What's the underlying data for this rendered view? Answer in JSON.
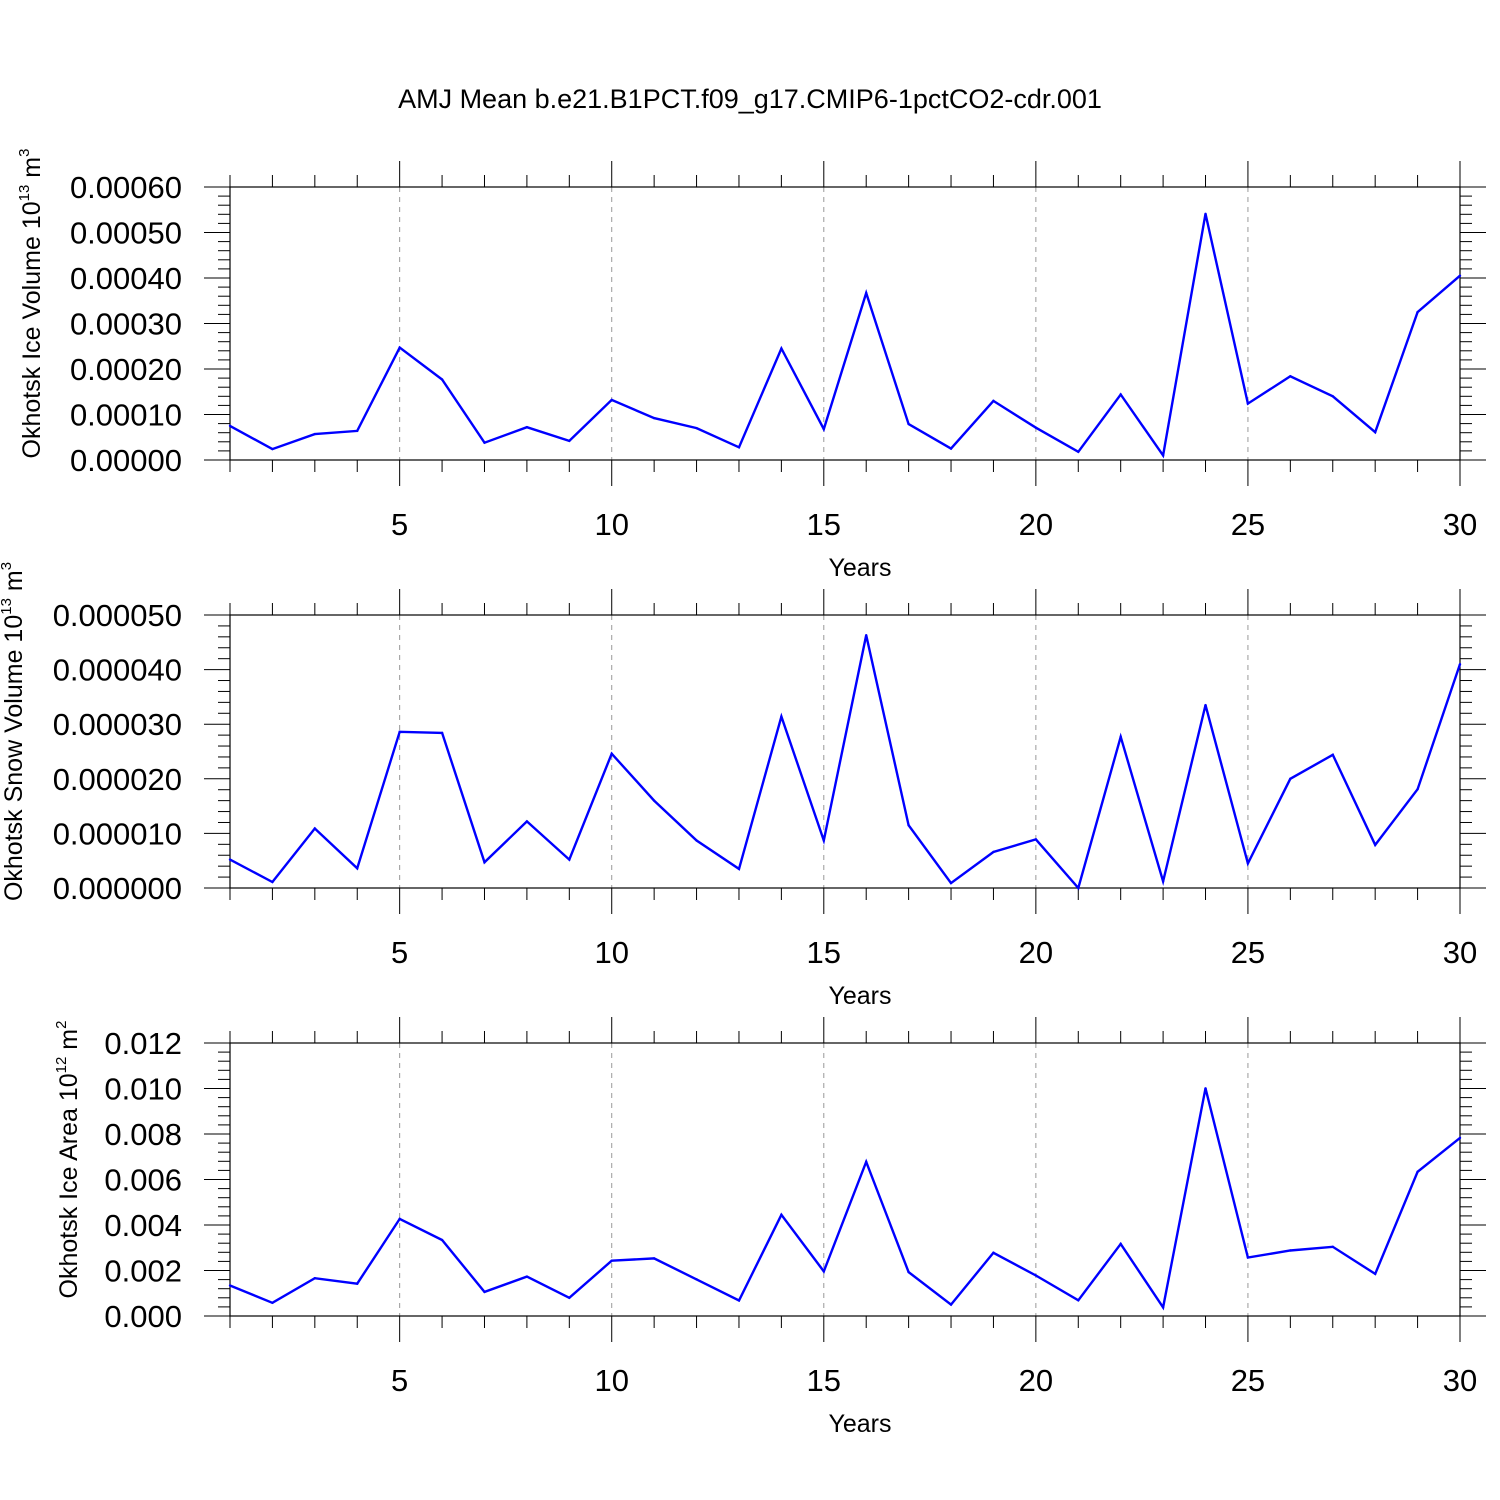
{
  "title": "AMJ Mean b.e21.B1PCT.f09_g17.CMIP6-1pctCO2-cdr.001",
  "colors": {
    "line": "#0000ff",
    "axes": "#000000",
    "grid": "#999999"
  },
  "chart_data": [
    {
      "type": "line",
      "xlabel": "Years",
      "ylabel": "Okhotsk Ice Volume 10^13 m^3",
      "ylabel_parts": {
        "base": "Okhotsk Ice Volume 10",
        "exp1": "13",
        "unit": " m",
        "exp2": "3"
      },
      "xlim": [
        1,
        30
      ],
      "ylim": [
        0,
        0.0006
      ],
      "xticks": [
        5,
        10,
        15,
        20,
        25,
        30
      ],
      "yticks": [
        0,
        0.0001,
        0.0002,
        0.0003,
        0.0004,
        0.0005,
        0.0006
      ],
      "ytick_labels": [
        "0.00000",
        "0.00010",
        "0.00020",
        "0.00030",
        "0.00040",
        "0.00050",
        "0.00060"
      ],
      "grid": "x-dashed",
      "x": [
        1,
        2,
        3,
        4,
        5,
        6,
        7,
        8,
        9,
        10,
        11,
        12,
        13,
        14,
        15,
        16,
        17,
        18,
        19,
        20,
        21,
        22,
        23,
        24,
        25,
        26,
        27,
        28,
        29,
        30
      ],
      "y": [
        7.5e-05,
        2.4e-05,
        5.7e-05,
        6.4e-05,
        0.000247,
        0.000177,
        3.8e-05,
        7.2e-05,
        4.2e-05,
        0.000132,
        9.2e-05,
        7e-05,
        2.8e-05,
        0.000245,
        6.8e-05,
        0.000367,
        7.9e-05,
        2.5e-05,
        0.00013,
        7.1e-05,
        1.8e-05,
        0.000144,
        1e-05,
        0.000541,
        0.000124,
        0.000184,
        0.00014,
        6.1e-05,
        0.000325,
        0.000405
      ]
    },
    {
      "type": "line",
      "xlabel": "Years",
      "ylabel": "Okhotsk Snow Volume 10^13 m^3",
      "ylabel_parts": {
        "base": "Okhotsk Snow Volume 10",
        "exp1": "13",
        "unit": " m",
        "exp2": "3"
      },
      "xlim": [
        1,
        30
      ],
      "ylim": [
        0,
        5e-05
      ],
      "xticks": [
        5,
        10,
        15,
        20,
        25,
        30
      ],
      "yticks": [
        0,
        1e-05,
        2e-05,
        3e-05,
        4e-05,
        5e-05
      ],
      "ytick_labels": [
        "0.000000",
        "0.000010",
        "0.000020",
        "0.000030",
        "0.000040",
        "0.000050"
      ],
      "grid": "x-dashed",
      "x": [
        1,
        2,
        3,
        4,
        5,
        6,
        7,
        8,
        9,
        10,
        11,
        12,
        13,
        14,
        15,
        16,
        17,
        18,
        19,
        20,
        21,
        22,
        23,
        24,
        25,
        26,
        27,
        28,
        29,
        30
      ],
      "y": [
        5.2e-06,
        1.1e-06,
        1.09e-05,
        3.6e-06,
        2.86e-05,
        2.84e-05,
        4.7e-06,
        1.22e-05,
        5.2e-06,
        2.46e-05,
        1.6e-05,
        8.7e-06,
        3.5e-06,
        3.14e-05,
        8.7e-06,
        4.63e-05,
        1.15e-05,
        9e-07,
        6.6e-06,
        8.9e-06,
        0.0,
        2.77e-05,
        1.2e-06,
        3.35e-05,
        4.5e-06,
        2e-05,
        2.44e-05,
        7.9e-06,
        1.81e-05,
        4.1e-05
      ]
    },
    {
      "type": "line",
      "xlabel": "Years",
      "ylabel": "Okhotsk Ice Area 10^12 m^2",
      "ylabel_parts": {
        "base": "Okhotsk Ice Area 10",
        "exp1": "12",
        "unit": " m",
        "exp2": "2"
      },
      "xlim": [
        1,
        30
      ],
      "ylim": [
        0,
        0.012
      ],
      "xticks": [
        5,
        10,
        15,
        20,
        25,
        30
      ],
      "yticks": [
        0,
        0.002,
        0.004,
        0.006,
        0.008,
        0.01,
        0.012
      ],
      "ytick_labels": [
        "0.000",
        "0.002",
        "0.004",
        "0.006",
        "0.008",
        "0.010",
        "0.012"
      ],
      "grid": "x-dashed",
      "x": [
        1,
        2,
        3,
        4,
        5,
        6,
        7,
        8,
        9,
        10,
        11,
        12,
        13,
        14,
        15,
        16,
        17,
        18,
        19,
        20,
        21,
        22,
        23,
        24,
        25,
        26,
        27,
        28,
        29,
        30
      ],
      "y": [
        0.00134,
        0.00058,
        0.00166,
        0.00142,
        0.00427,
        0.00334,
        0.00106,
        0.00173,
        0.0008,
        0.00243,
        0.00253,
        0.00161,
        0.00068,
        0.00445,
        0.00196,
        0.00678,
        0.00193,
        0.0005,
        0.00278,
        0.00178,
        0.00069,
        0.00317,
        0.00038,
        0.01001,
        0.00257,
        0.00288,
        0.00304,
        0.00185,
        0.00634,
        0.00783
      ]
    }
  ]
}
